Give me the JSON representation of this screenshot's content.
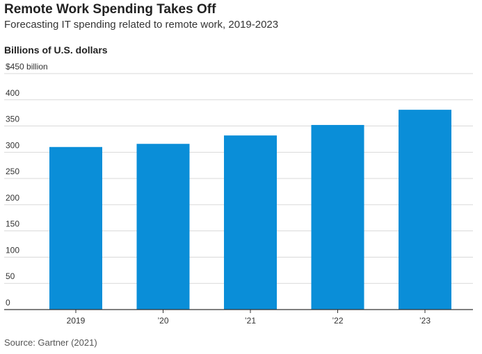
{
  "title": "Remote Work Spending Takes Off",
  "subtitle": "Forecasting IT spending related to remote work, 2019-2023",
  "units_label": "Billions of U.S. dollars",
  "source": "Source: Gartner (2021)",
  "colors": {
    "bar": "#0a8ed8",
    "grid": "#d9d9d9",
    "axis": "#333333"
  },
  "chart_data": {
    "type": "bar",
    "title": "Remote Work Spending Takes Off",
    "subtitle": "Forecasting IT spending related to remote work, 2019-2023",
    "xlabel": "",
    "ylabel": "Billions of U.S. dollars",
    "categories": [
      "2019",
      "’20",
      "’21",
      "’22",
      "’23"
    ],
    "values": [
      310,
      316,
      332,
      352,
      381
    ],
    "ylim": [
      0,
      450
    ],
    "yticks": [
      0,
      50,
      100,
      150,
      200,
      250,
      300,
      350,
      400,
      450
    ],
    "ytick_labels": [
      "0",
      "50",
      "100",
      "150",
      "200",
      "250",
      "300",
      "350",
      "400",
      "$450 billion"
    ],
    "grid": true,
    "legend": "none"
  }
}
